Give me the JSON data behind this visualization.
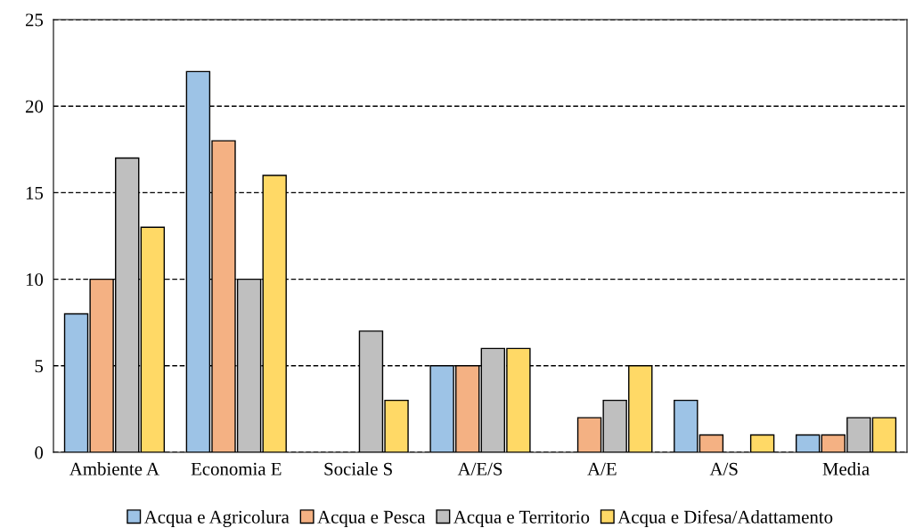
{
  "chart_data": {
    "type": "bar",
    "categories": [
      "Ambiente A",
      "Economia E",
      "Sociale S",
      "A/E/S",
      "A/E",
      "A/S",
      "Media"
    ],
    "series": [
      {
        "name": "Acqua e Agricolura",
        "color": "#9dc3e6",
        "values": [
          8,
          22,
          null,
          5,
          null,
          3,
          1
        ]
      },
      {
        "name": "Acqua e Pesca",
        "color": "#f4b183",
        "values": [
          10,
          18,
          null,
          5,
          2,
          1,
          1
        ]
      },
      {
        "name": "Acqua e Territorio",
        "color": "#bfbfbf",
        "values": [
          17,
          10,
          7,
          6,
          3,
          null,
          2
        ]
      },
      {
        "name": "Acqua e Difesa/Adattamento",
        "color": "#ffd966",
        "values": [
          13,
          16,
          3,
          6,
          5,
          1,
          2
        ]
      }
    ],
    "ylim": [
      0,
      25
    ],
    "yticks": [
      0,
      5,
      10,
      15,
      20,
      25
    ],
    "grid": "y",
    "legend": "bottom"
  }
}
